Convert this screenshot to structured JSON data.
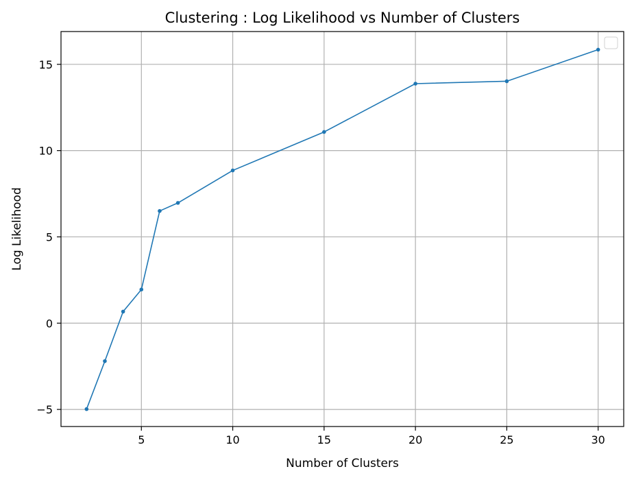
{
  "chart_data": {
    "type": "line",
    "title": "Clustering : Log Likelihood vs Number of Clusters",
    "xlabel": "Number of Clusters",
    "ylabel": "Log Likelihood",
    "x": [
      2,
      3,
      4,
      5,
      6,
      7,
      10,
      15,
      20,
      25,
      30
    ],
    "series": [
      {
        "values": [
          -4.98,
          -2.2,
          0.67,
          1.95,
          6.5,
          6.97,
          8.85,
          11.08,
          13.88,
          14.02,
          15.85
        ]
      }
    ],
    "xlim": [
      0.6,
      31.4
    ],
    "ylim": [
      -5.99,
      16.9
    ],
    "xticks": [
      5,
      10,
      15,
      20,
      25,
      30
    ],
    "yticks": [
      -5,
      0,
      5,
      10,
      15
    ],
    "xtick_labels": [
      "5",
      "10",
      "15",
      "20",
      "25",
      "30"
    ],
    "ytick_labels": [
      "−5",
      "0",
      "5",
      "10",
      "15"
    ],
    "grid": true,
    "legend": "upper right, empty",
    "colors": {
      "line": "#1f77b4",
      "grid": "#b0b0b0",
      "axes": "#000000"
    }
  }
}
